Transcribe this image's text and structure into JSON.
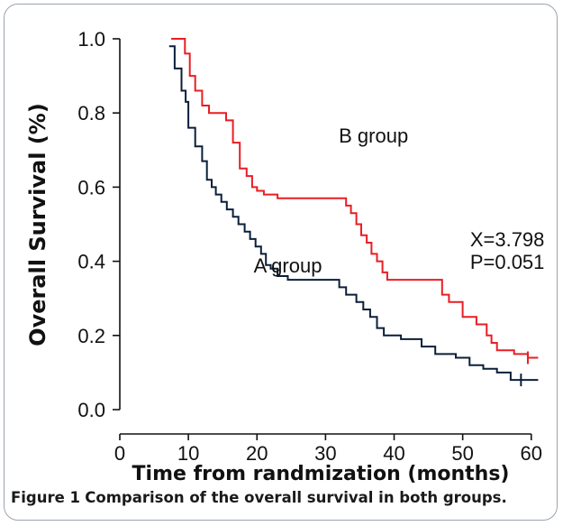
{
  "figure": {
    "label": "Figure 1",
    "caption": "Comparison of the overall survival in both groups."
  },
  "chart_data": {
    "type": "line",
    "step": true,
    "title": "",
    "xlabel": "Time from randmization (months)",
    "ylabel": "Overall Survival (%)",
    "xlim": [
      0,
      62
    ],
    "ylim": [
      0,
      1.0
    ],
    "xticks": [
      "0",
      "10",
      "20",
      "30",
      "40",
      "50",
      "60"
    ],
    "yticks": [
      "0.0",
      "0.2",
      "0.4",
      "0.6",
      "0.8",
      "1.0"
    ],
    "grid": false,
    "series": [
      {
        "name": "A group",
        "color": "#0b1f3a",
        "x": [
          7.2,
          8,
          9,
          9.6,
          10,
          11,
          12,
          12.7,
          13.4,
          14,
          14.8,
          15.6,
          16.5,
          17.3,
          18.2,
          19,
          19.8,
          20.6,
          21.3,
          22,
          23,
          24.5,
          26,
          32,
          33,
          34.5,
          35.5,
          36.5,
          37.5,
          38.5,
          41,
          44,
          46,
          49,
          51,
          53,
          55,
          57,
          58.5,
          61
        ],
        "y": [
          0.98,
          0.92,
          0.86,
          0.83,
          0.76,
          0.71,
          0.67,
          0.62,
          0.6,
          0.58,
          0.56,
          0.54,
          0.52,
          0.5,
          0.48,
          0.46,
          0.44,
          0.42,
          0.39,
          0.38,
          0.36,
          0.35,
          0.35,
          0.33,
          0.31,
          0.29,
          0.27,
          0.25,
          0.22,
          0.2,
          0.19,
          0.17,
          0.15,
          0.14,
          0.12,
          0.11,
          0.1,
          0.08,
          0.08,
          0.08
        ]
      },
      {
        "name": "B group",
        "color": "#e81e24",
        "x": [
          7.5,
          9.5,
          10.2,
          11,
          12,
          13,
          15.5,
          16.5,
          17.5,
          18.5,
          19.3,
          20,
          21,
          23,
          33,
          33.7,
          34.5,
          35.2,
          36,
          36.7,
          37.5,
          38.3,
          39,
          47,
          48,
          50,
          52,
          53.5,
          54.2,
          55,
          57.5,
          59.5,
          61
        ],
        "y": [
          1.0,
          0.96,
          0.9,
          0.86,
          0.82,
          0.8,
          0.78,
          0.72,
          0.65,
          0.63,
          0.6,
          0.59,
          0.58,
          0.57,
          0.55,
          0.53,
          0.5,
          0.47,
          0.45,
          0.42,
          0.4,
          0.37,
          0.35,
          0.31,
          0.29,
          0.25,
          0.23,
          0.2,
          0.18,
          0.16,
          0.15,
          0.14,
          0.14
        ]
      }
    ],
    "annotations": [
      {
        "text": "B group",
        "x": 37,
        "y": 0.72
      },
      {
        "text": "A group",
        "x": 24.5,
        "y": 0.37
      },
      {
        "text": "X=3.798",
        "x": 56.5,
        "y": 0.44
      },
      {
        "text": "P=0.051",
        "x": 56.5,
        "y": 0.38
      }
    ]
  }
}
